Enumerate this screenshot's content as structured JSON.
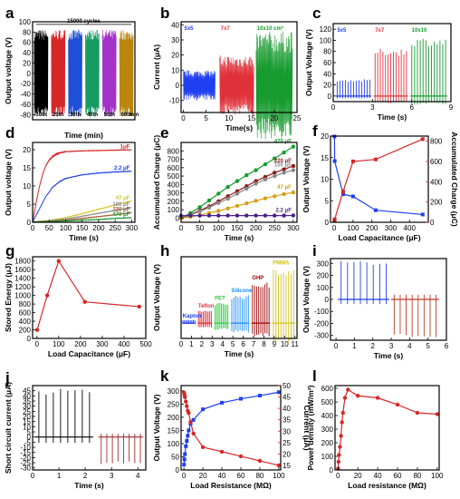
{
  "chart_data": [
    {
      "id": "a",
      "type": "line",
      "letter": "a",
      "xlabel": "Time (min)",
      "ylabel": "Output voltage (V)",
      "xlim": [
        0,
        60
      ],
      "ylim": [
        -90,
        100
      ],
      "yticks": [
        -80,
        -60,
        -40,
        -20,
        0,
        20,
        40,
        60,
        80,
        100
      ],
      "xticks": [],
      "annotation": "15000 cycles",
      "series": [
        {
          "segment": "10th",
          "x": [
            1,
            9
          ],
          "amplitude": 85,
          "color": "#000000"
        },
        {
          "segment": "20th",
          "x": [
            11,
            19
          ],
          "amplitude": 85,
          "color": "#d62728"
        },
        {
          "segment": "30th",
          "x": [
            21,
            29
          ],
          "amplitude": 85,
          "color": "#1f4fd6"
        },
        {
          "segment": "40th",
          "x": [
            31,
            39
          ],
          "amplitude": 85,
          "color": "#169b62"
        },
        {
          "segment": "50th",
          "x": [
            41,
            49
          ],
          "amplitude": 85,
          "color": "#a333c8"
        },
        {
          "segment": "60th",
          "x": [
            51,
            59
          ],
          "amplitude": 85,
          "color": "#b8860b"
        }
      ],
      "segment_labels": [
        "10th",
        "20th",
        "30th",
        "40th",
        "50th",
        "60th"
      ],
      "end_label": "min"
    },
    {
      "id": "b",
      "type": "line",
      "letter": "b",
      "xlabel": "Time(s)",
      "ylabel": "Current (μA)",
      "xlim": [
        -0.5,
        25
      ],
      "ylim": [
        -18,
        42
      ],
      "xticks": [
        0,
        5,
        10,
        15,
        20,
        25
      ],
      "yticks": [
        -10,
        0,
        10,
        20,
        30,
        40
      ],
      "series": [
        {
          "name": "5x5",
          "x": [
            0,
            7
          ],
          "amplitude": 10,
          "color": "#1f3ff0"
        },
        {
          "name": "7x7",
          "x": [
            8,
            15.5
          ],
          "amplitude": 20,
          "color": "#e0303a"
        },
        {
          "name": "10x10 cm²",
          "x": [
            16,
            24
          ],
          "amplitude": 36,
          "color": "#169b2f"
        }
      ]
    },
    {
      "id": "c",
      "type": "line",
      "letter": "c",
      "xlabel": "Time (s)",
      "ylabel": "Output Voltage (V)",
      "xlim": [
        0,
        9
      ],
      "ylim": [
        -10,
        130
      ],
      "xticks": [
        0,
        3,
        6,
        9
      ],
      "yticks": [
        0,
        20,
        40,
        60,
        80,
        100,
        120
      ],
      "series": [
        {
          "name": "5x5",
          "x": [
            0.2,
            2.9
          ],
          "peak": 30,
          "color": "#1f3ff0"
        },
        {
          "name": "7x7",
          "x": [
            3.1,
            5.7
          ],
          "peak": 85,
          "color": "#e0303a"
        },
        {
          "name": "10x10",
          "x": [
            5.9,
            8.7
          ],
          "peak": 105,
          "color": "#169b2f"
        }
      ]
    },
    {
      "id": "d",
      "type": "line",
      "letter": "d",
      "xlabel": "Time (s)",
      "ylabel": "Output voltage (V)",
      "xlim": [
        0,
        310
      ],
      "ylim": [
        0,
        22
      ],
      "xticks": [
        0,
        50,
        100,
        150,
        200,
        250,
        300
      ],
      "yticks": [
        0,
        5,
        10,
        15,
        20
      ],
      "series": [
        {
          "name": "1μF",
          "color": "#d62728",
          "x": [
            0,
            10,
            20,
            30,
            40,
            50,
            60,
            70,
            80,
            100,
            150,
            200,
            250,
            300
          ],
          "y": [
            0,
            5,
            9.5,
            13,
            15.5,
            17,
            18,
            18.6,
            19,
            19.4,
            19.6,
            19.7,
            19.8,
            19.9
          ]
        },
        {
          "name": "2.2 μF",
          "color": "#1f3ff0",
          "x": [
            0,
            20,
            40,
            60,
            80,
            100,
            150,
            200,
            250,
            300
          ],
          "y": [
            0,
            3.5,
            7,
            9.5,
            11,
            12,
            13,
            13.5,
            13.8,
            14
          ]
        },
        {
          "name": "47 μF",
          "color": "#d4c21a",
          "x": [
            0,
            50,
            100,
            150,
            200,
            250,
            300
          ],
          "y": [
            0,
            0.4,
            1.2,
            2.3,
            3.5,
            4.7,
            5.8
          ]
        },
        {
          "name": "100 μF",
          "color": "#888888",
          "x": [
            0,
            50,
            100,
            150,
            200,
            250,
            300
          ],
          "y": [
            0,
            0.3,
            0.8,
            1.6,
            2.4,
            3.2,
            4.0
          ]
        },
        {
          "name": "220 μF",
          "color": "#a0522d",
          "x": [
            0,
            50,
            100,
            150,
            200,
            250,
            300
          ],
          "y": [
            0,
            0.2,
            0.5,
            1.0,
            1.5,
            2.0,
            2.6
          ]
        },
        {
          "name": "470 μF",
          "color": "#169b2f",
          "x": [
            0,
            50,
            100,
            150,
            200,
            250,
            300
          ],
          "y": [
            0,
            0.1,
            0.3,
            0.5,
            0.7,
            1.0,
            1.2
          ]
        }
      ]
    },
    {
      "id": "e",
      "type": "line",
      "letter": "e",
      "xlabel": "Time (s)",
      "ylabel": "Accumulated Charge (μC)",
      "xlim": [
        0,
        310
      ],
      "ylim": [
        -50,
        900
      ],
      "xticks": [
        0,
        50,
        100,
        150,
        200,
        250,
        300
      ],
      "yticks": [
        0,
        100,
        200,
        300,
        400,
        500,
        600,
        700,
        800
      ],
      "series": [
        {
          "name": "470 μF",
          "color": "#169b2f",
          "x": [
            0,
            25,
            50,
            75,
            100,
            125,
            150,
            175,
            200,
            225,
            250,
            275,
            300
          ],
          "y": [
            0,
            60,
            130,
            210,
            290,
            370,
            440,
            510,
            570,
            640,
            710,
            780,
            850
          ]
        },
        {
          "name": "220 μF",
          "color": "#8b1a1a",
          "x": [
            0,
            25,
            50,
            75,
            100,
            125,
            150,
            175,
            200,
            225,
            250,
            275,
            300
          ],
          "y": [
            0,
            40,
            90,
            140,
            200,
            260,
            320,
            380,
            440,
            490,
            540,
            580,
            620
          ]
        },
        {
          "name": "100 μF",
          "color": "#888888",
          "x": [
            0,
            25,
            50,
            75,
            100,
            125,
            150,
            175,
            200,
            225,
            250,
            275,
            300
          ],
          "y": [
            0,
            35,
            80,
            125,
            180,
            230,
            290,
            350,
            410,
            460,
            500,
            540,
            570
          ]
        },
        {
          "name": "47 μF",
          "color": "#d4a017",
          "x": [
            0,
            25,
            50,
            75,
            100,
            125,
            150,
            175,
            200,
            225,
            250,
            275,
            300
          ],
          "y": [
            0,
            15,
            35,
            60,
            85,
            115,
            145,
            175,
            205,
            235,
            260,
            285,
            305
          ]
        },
        {
          "name": "2.2 μF",
          "color": "#4b1f8a",
          "x": [
            0,
            25,
            50,
            75,
            100,
            125,
            150,
            175,
            200,
            225,
            250,
            275,
            300
          ],
          "y": [
            28,
            29,
            29,
            30,
            30,
            30,
            30,
            30,
            30,
            30,
            30,
            30,
            31
          ]
        }
      ]
    },
    {
      "id": "f",
      "type": "line",
      "letter": "f",
      "xlabel": "Load Capacitance (μF)",
      "ylabel": "Output Voltage (V)",
      "ylabel2": "Accumulated Charge (μC)",
      "xlim": [
        -20,
        500
      ],
      "ylim": [
        0,
        20
      ],
      "ylim2": [
        0,
        850
      ],
      "xticks": [
        0,
        100,
        200,
        300,
        400
      ],
      "yticks": [
        0,
        5,
        10,
        15,
        20
      ],
      "yticks2": [
        0,
        200,
        400,
        600,
        800
      ],
      "series": [
        {
          "name": "Output Voltage",
          "axis": "left",
          "color": "#1f3ff0",
          "x": [
            1,
            2.2,
            47,
            100,
            220,
            470
          ],
          "y": [
            19.9,
            14.2,
            6.5,
            6.0,
            2.8,
            1.8
          ]
        },
        {
          "name": "Accumulated Charge",
          "axis": "right",
          "color": "#d62728",
          "x": [
            1,
            2.2,
            47,
            100,
            220,
            470
          ],
          "y": [
            20,
            30,
            305,
            600,
            620,
            820
          ]
        }
      ]
    },
    {
      "id": "g",
      "type": "line",
      "letter": "g",
      "xlabel": "Load Capacitance (μF)",
      "ylabel": "Stored Energy (μJ)",
      "xlim": [
        -20,
        500
      ],
      "ylim": [
        0,
        1900
      ],
      "xticks": [
        0,
        100,
        200,
        300,
        400,
        500
      ],
      "yticks": [
        0,
        200,
        400,
        600,
        800,
        1000,
        1200,
        1400,
        1600,
        1800
      ],
      "series": [
        {
          "name": "Stored Energy",
          "color": "#d62728",
          "x": [
            1,
            47,
            100,
            220,
            470
          ],
          "y": [
            200,
            1000,
            1800,
            850,
            740
          ]
        }
      ]
    },
    {
      "id": "h",
      "type": "line",
      "letter": "h",
      "xlabel": "Time (s)",
      "ylabel": "Output Voltage (V)",
      "xlim": [
        0,
        11.2
      ],
      "ylim": [
        -30,
        130
      ],
      "xticks": [
        0,
        1,
        2,
        3,
        4,
        5,
        6,
        7,
        8,
        9,
        10,
        11
      ],
      "yticks": [],
      "series": [
        {
          "name": "Kapton",
          "x": [
            0.1,
            1.4
          ],
          "peak": 6,
          "color": "#1f3ff0"
        },
        {
          "name": "Teflon",
          "x": [
            1.6,
            3.0
          ],
          "peak": 25,
          "color": "#e0303a"
        },
        {
          "name": "PET",
          "x": [
            3.2,
            4.6
          ],
          "peak": 40,
          "color": "#2ecc40"
        },
        {
          "name": "Silicone",
          "x": [
            4.8,
            6.6
          ],
          "peak": 55,
          "color": "#1a8cff"
        },
        {
          "name": "OHP",
          "x": [
            6.8,
            8.6
          ],
          "peak": 80,
          "color": "#a00000"
        },
        {
          "name": "PMMA",
          "x": [
            8.8,
            11.0
          ],
          "peak": 110,
          "color": "#d4c21a"
        }
      ]
    },
    {
      "id": "i",
      "type": "line",
      "letter": "i",
      "xlabel": "Time (s)",
      "ylabel": "Output Voltage (V)",
      "xlim": [
        -0.3,
        6
      ],
      "ylim": [
        -340,
        340
      ],
      "xticks": [
        0,
        1,
        2,
        3,
        4,
        5,
        6
      ],
      "yticks": [
        -300,
        -200,
        -100,
        0,
        100,
        200,
        300
      ],
      "series": [
        {
          "name": "positive",
          "x": [
            0.1,
            2.9
          ],
          "peak": 320,
          "color": "#1f3ff0"
        },
        {
          "name": "negative",
          "x": [
            3.0,
            5.6
          ],
          "peak": -320,
          "color": "#c0392b"
        }
      ]
    },
    {
      "id": "j",
      "type": "line",
      "letter": "j",
      "xlabel": "Time (s)",
      "ylabel": "Short circuit current (μA)",
      "xlim": [
        0,
        4.3
      ],
      "ylim": [
        -32,
        50
      ],
      "xticks": [
        0,
        1,
        2,
        3,
        4
      ],
      "yticks": [
        -30,
        -25,
        -20,
        -15,
        -10,
        -5,
        0,
        5,
        10,
        15,
        20,
        25,
        30,
        35,
        40,
        45
      ],
      "series": [
        {
          "name": "positive",
          "x": [
            0.1,
            2.3
          ],
          "peak": 47,
          "color": "#000000"
        },
        {
          "name": "negative",
          "x": [
            2.5,
            4.2
          ],
          "peak": -27,
          "color": "#a52a2a"
        }
      ]
    },
    {
      "id": "k",
      "type": "line",
      "letter": "k",
      "xlabel": "Load Resistance (MΩ)",
      "ylabel": "Output Voltage (V)",
      "ylabel2": "Current (μA)",
      "xlim": [
        -3,
        102
      ],
      "ylim": [
        0,
        320
      ],
      "ylim2": [
        13,
        50
      ],
      "xticks": [
        0,
        20,
        40,
        60,
        80,
        100
      ],
      "yticks": [
        0,
        50,
        100,
        150,
        200,
        250,
        300
      ],
      "yticks2": [
        15,
        20,
        25,
        30,
        35,
        40,
        45,
        50
      ],
      "series": [
        {
          "name": "Output Voltage",
          "axis": "left",
          "color": "#1f3ff0",
          "x": [
            0.1,
            0.5,
            1,
            2,
            3,
            4,
            5,
            7,
            10,
            20,
            40,
            60,
            80,
            100
          ],
          "y": [
            20,
            40,
            60,
            90,
            110,
            130,
            150,
            175,
            190,
            230,
            255,
            270,
            282,
            295
          ]
        },
        {
          "name": "Current",
          "axis": "right",
          "color": "#d62728",
          "x": [
            0.1,
            0.5,
            1,
            2,
            3,
            4,
            5,
            7,
            10,
            20,
            40,
            60,
            80,
            100
          ],
          "y": [
            47,
            46,
            45,
            43,
            41,
            39,
            38,
            34,
            29,
            23,
            21,
            19,
            17,
            15
          ]
        }
      ]
    },
    {
      "id": "l",
      "type": "line",
      "letter": "l",
      "xlabel": "Load resistance (MΩ)",
      "ylabel": "Power density (mW/m²)",
      "xlim": [
        -3,
        102
      ],
      "ylim": [
        0,
        620
      ],
      "xticks": [
        0,
        20,
        40,
        60,
        80,
        100
      ],
      "yticks": [
        0,
        100,
        200,
        300,
        400,
        500,
        600
      ],
      "series": [
        {
          "name": "Power density",
          "color": "#d62728",
          "x": [
            0.1,
            0.5,
            1,
            2,
            3,
            4,
            5,
            7,
            10,
            20,
            40,
            60,
            80,
            100
          ],
          "y": [
            10,
            60,
            110,
            170,
            250,
            350,
            420,
            530,
            590,
            545,
            530,
            480,
            420,
            410
          ]
        }
      ]
    }
  ]
}
